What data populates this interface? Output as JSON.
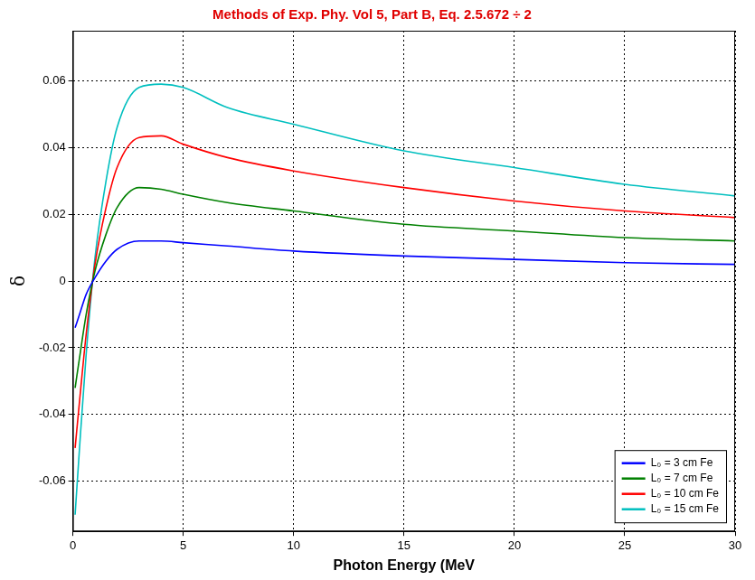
{
  "chart_data": {
    "type": "line",
    "title": "Methods of Exp. Phy. Vol 5, Part B, Eq. 2.5.672 ÷ 2",
    "x_label": "Photon Energy (MeV",
    "y_label": "δ",
    "x": [
      0.1,
      0.3,
      0.6,
      1,
      1.5,
      2,
      3,
      4,
      5,
      7,
      10,
      15,
      20,
      25,
      30
    ],
    "series": [
      {
        "name": "L₀ = 3 cm Fe",
        "color": "#0000ff",
        "values": [
          -0.014,
          -0.01,
          -0.004,
          0.001,
          0.006,
          0.0095,
          0.012,
          0.012,
          0.0115,
          0.0105,
          0.009,
          0.0075,
          0.0065,
          0.0055,
          0.005
        ]
      },
      {
        "name": "L₀ = 7 cm Fe",
        "color": "#008000",
        "values": [
          -0.032,
          -0.023,
          -0.01,
          0.003,
          0.014,
          0.022,
          0.028,
          0.0275,
          0.026,
          0.0235,
          0.021,
          0.017,
          0.015,
          0.013,
          0.012
        ]
      },
      {
        "name": "L₀ = 10 cm Fe",
        "color": "#ff0000",
        "values": [
          -0.05,
          -0.036,
          -0.016,
          0.005,
          0.022,
          0.034,
          0.043,
          0.0435,
          0.041,
          0.037,
          0.033,
          0.028,
          0.024,
          0.021,
          0.019
        ]
      },
      {
        "name": "L₀ = 15 cm Fe",
        "color": "#00bfbf",
        "values": [
          -0.07,
          -0.05,
          -0.022,
          0.007,
          0.03,
          0.046,
          0.058,
          0.059,
          0.058,
          0.052,
          0.047,
          0.039,
          0.034,
          0.029,
          0.0255
        ]
      }
    ],
    "xlim": [
      0,
      30
    ],
    "xticks": [
      0,
      5,
      10,
      15,
      20,
      25,
      30
    ],
    "ylim": [
      -0.075,
      0.075
    ],
    "yticks": [
      -0.06,
      -0.04,
      -0.02,
      0,
      0.02,
      0.04,
      0.06
    ],
    "grid": true,
    "legend": "lower right"
  }
}
